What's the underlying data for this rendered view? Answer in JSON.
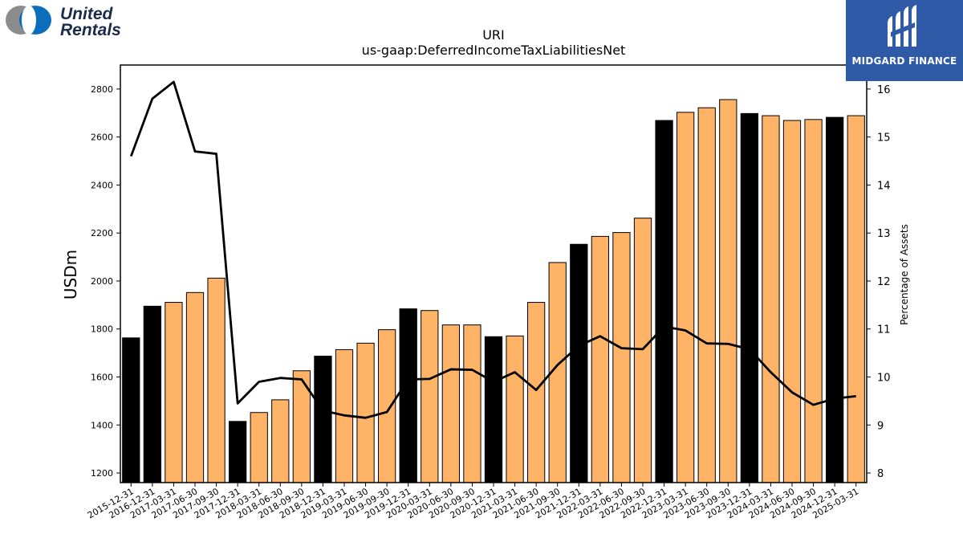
{
  "logos": {
    "left_brand_line1": "United",
    "left_brand_line2": "Rentals",
    "right_brand": "MIDGARD FINANCE"
  },
  "chart_data": {
    "type": "bar",
    "title": "URI",
    "subtitle": "us-gaap:DeferredIncomeTaxLiabilitiesNet",
    "ylabel": "USDm",
    "y2label": "Percentage of Assets",
    "ylim": [
      1160,
      2900
    ],
    "y2lim": [
      7.8,
      16.5
    ],
    "yticks": [
      1200,
      1400,
      1600,
      1800,
      2000,
      2200,
      2400,
      2600,
      2800
    ],
    "y2ticks": [
      8,
      9,
      10,
      11,
      12,
      13,
      14,
      15,
      16
    ],
    "categories": [
      "2015-12-31",
      "2016-12-31",
      "2017-03-31",
      "2017-06-30",
      "2017-09-30",
      "2017-12-31",
      "2018-03-31",
      "2018-06-30",
      "2018-09-30",
      "2018-12-31",
      "2019-03-31",
      "2019-06-30",
      "2019-09-30",
      "2019-12-31",
      "2020-03-31",
      "2020-06-30",
      "2020-09-30",
      "2020-12-31",
      "2021-03-31",
      "2021-06-30",
      "2021-09-30",
      "2021-12-31",
      "2022-03-31",
      "2022-06-30",
      "2022-09-30",
      "2022-12-31",
      "2023-03-31",
      "2023-06-30",
      "2023-09-30",
      "2023-12-31",
      "2024-03-31",
      "2024-06-30",
      "2024-09-30",
      "2024-12-31",
      "2025-03-31"
    ],
    "series": [
      {
        "type": "bar",
        "values": [
          1763,
          1895,
          1911,
          1952,
          2012,
          1415,
          1452,
          1505,
          1626,
          1687,
          1714,
          1741,
          1797,
          1884,
          1877,
          1817,
          1817,
          1768,
          1771,
          1911,
          2077,
          2153,
          2186,
          2202,
          2262,
          2669,
          2703,
          2722,
          2756,
          2698,
          2689,
          2669,
          2673,
          2682,
          2689
        ],
        "colors": [
          "#000000",
          "#000000",
          "#ffb366",
          "#ffb366",
          "#ffb366",
          "#000000",
          "#ffb366",
          "#ffb366",
          "#ffb366",
          "#000000",
          "#ffb366",
          "#ffb366",
          "#ffb366",
          "#000000",
          "#ffb366",
          "#ffb366",
          "#ffb366",
          "#000000",
          "#ffb366",
          "#ffb366",
          "#ffb366",
          "#000000",
          "#ffb366",
          "#ffb366",
          "#ffb366",
          "#000000",
          "#ffb366",
          "#ffb366",
          "#ffb366",
          "#000000",
          "#ffb366",
          "#ffb366",
          "#ffb366",
          "#000000",
          "#ffb366"
        ]
      },
      {
        "type": "line",
        "axis": "right",
        "color": "#000000",
        "values": [
          14.6,
          15.8,
          16.15,
          14.7,
          14.65,
          9.45,
          9.9,
          9.98,
          9.95,
          9.3,
          9.2,
          9.15,
          9.27,
          9.95,
          9.96,
          10.16,
          10.15,
          9.9,
          10.1,
          9.73,
          10.25,
          10.65,
          10.85,
          10.6,
          10.58,
          11.05,
          10.97,
          10.7,
          10.69,
          10.58,
          10.1,
          9.68,
          9.42,
          9.55,
          9.6
        ]
      }
    ],
    "grid": false
  }
}
